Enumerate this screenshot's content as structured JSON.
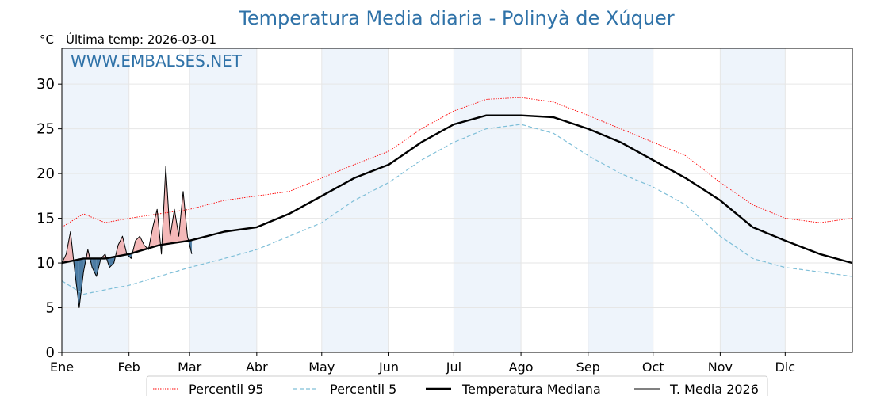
{
  "chart_data": {
    "type": "line",
    "title": "Temperatura Media diaria - Polinyà de Xúquer",
    "unit_label": "°C",
    "subtitle": "Última temp: 2026-03-01",
    "watermark": "WWW.EMBALSES.NET",
    "ylim": [
      0,
      34
    ],
    "yticks": [
      0,
      5,
      10,
      15,
      20,
      25,
      30
    ],
    "xlim": [
      0,
      365
    ],
    "months": [
      "Ene",
      "Feb",
      "Mar",
      "Abr",
      "May",
      "Jun",
      "Jul",
      "Ago",
      "Sep",
      "Oct",
      "Nov",
      "Dic"
    ],
    "month_starts": [
      0,
      31,
      59,
      90,
      120,
      151,
      181,
      212,
      243,
      273,
      304,
      334
    ],
    "grid": true,
    "shaded_months": [
      "Ene",
      "Mar",
      "May",
      "Jul",
      "Sep",
      "Nov"
    ],
    "legend_position": "bottom",
    "colors": {
      "title": "#2f72a8",
      "p95": "#ff0000",
      "p5": "#7fbfd8",
      "median": "#000000",
      "current": "#000000",
      "above_fill": "#f0a0a0",
      "below_fill": "#3a6f9a",
      "shade": "#eef4fb"
    },
    "series": [
      {
        "name": "Percentil 95",
        "style": "dotted",
        "x": [
          0,
          10,
          20,
          31,
          45,
          59,
          75,
          90,
          105,
          120,
          135,
          151,
          166,
          181,
          196,
          212,
          227,
          243,
          258,
          273,
          288,
          304,
          319,
          334,
          350,
          365
        ],
        "values": [
          14,
          15.5,
          14.5,
          15,
          15.5,
          16,
          17,
          17.5,
          18,
          19.5,
          21,
          22.5,
          25,
          27,
          28.3,
          28.5,
          28,
          26.5,
          25,
          23.5,
          22,
          19,
          16.5,
          15,
          14.5,
          15
        ]
      },
      {
        "name": "Percentil 5",
        "style": "dashed",
        "x": [
          0,
          10,
          20,
          31,
          45,
          59,
          75,
          90,
          105,
          120,
          135,
          151,
          166,
          181,
          196,
          212,
          227,
          243,
          258,
          273,
          288,
          304,
          319,
          334,
          350,
          365
        ],
        "values": [
          8,
          6.5,
          7,
          7.5,
          8.5,
          9.5,
          10.5,
          11.5,
          13,
          14.5,
          17,
          19,
          21.5,
          23.5,
          25,
          25.5,
          24.5,
          22,
          20,
          18.5,
          16.5,
          13,
          10.5,
          9.5,
          9,
          8.5
        ]
      },
      {
        "name": "Temperatura Mediana",
        "style": "solid-thick",
        "x": [
          0,
          10,
          20,
          31,
          45,
          59,
          75,
          90,
          105,
          120,
          135,
          151,
          166,
          181,
          196,
          212,
          227,
          243,
          258,
          273,
          288,
          304,
          319,
          334,
          350,
          365
        ],
        "values": [
          10,
          10.5,
          10.5,
          11,
          12,
          12.5,
          13.5,
          14,
          15.5,
          17.5,
          19.5,
          21,
          23.5,
          25.5,
          26.5,
          26.5,
          26.3,
          25,
          23.5,
          21.5,
          19.5,
          17,
          14,
          12.5,
          11,
          10
        ]
      },
      {
        "name": "T. Media 2026",
        "style": "solid-thin",
        "x": [
          0,
          2,
          4,
          6,
          8,
          10,
          12,
          14,
          16,
          18,
          20,
          22,
          24,
          26,
          28,
          30,
          32,
          34,
          36,
          38,
          40,
          42,
          44,
          46,
          48,
          50,
          52,
          54,
          56,
          58,
          60
        ],
        "values": [
          10,
          11,
          13.5,
          9,
          5,
          9,
          11.5,
          9.5,
          8.5,
          10.5,
          11,
          9.5,
          10,
          12,
          13,
          11,
          10.5,
          12.5,
          13,
          12,
          11.5,
          14,
          16,
          11,
          20.8,
          13,
          16,
          13,
          18,
          13,
          11
        ]
      }
    ]
  }
}
